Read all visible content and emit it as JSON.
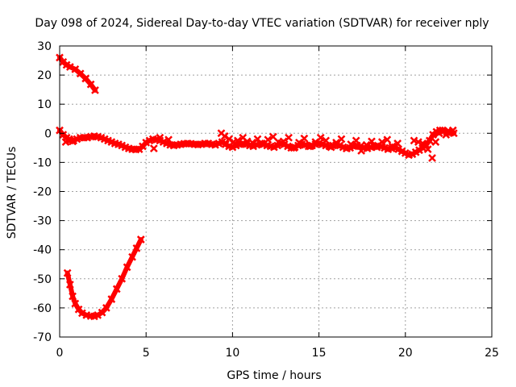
{
  "chart_data": {
    "type": "scatter",
    "title": "Day 098 of 2024, Sidereal Day-to-day VTEC variation (SDTVAR) for receiver nply",
    "xlabel": "GPS time / hours",
    "ylabel": "SDTVAR / TECUs",
    "xlim": [
      0,
      25
    ],
    "ylim": [
      -70,
      30
    ],
    "xticks": [
      0,
      5,
      10,
      15,
      20,
      25
    ],
    "yticks": [
      -70,
      -60,
      -50,
      -40,
      -30,
      -20,
      -10,
      0,
      10,
      20,
      30
    ],
    "grid": true,
    "marker_color": "#ff0000",
    "series": [
      {
        "name": "upper-arc",
        "x": [
          0.0,
          0.2,
          0.4,
          0.6,
          0.9,
          1.2,
          1.5,
          1.8,
          2.05
        ],
        "y": [
          26,
          24.5,
          23.5,
          22.8,
          22,
          20.5,
          18.8,
          16.8,
          14.8
        ]
      },
      {
        "name": "lower-arc",
        "x": [
          0.45,
          0.6,
          0.75,
          0.9,
          1.1,
          1.3,
          1.55,
          1.8,
          2.0,
          2.2,
          2.45,
          2.7,
          3.0,
          3.3,
          3.6,
          3.9,
          4.2,
          4.45,
          4.7
        ],
        "y": [
          -48,
          -52,
          -56,
          -58.5,
          -60.5,
          -61.8,
          -62.5,
          -62.8,
          -62.9,
          -62.5,
          -61.6,
          -60,
          -57,
          -53.5,
          -50,
          -46,
          -42.5,
          -39.5,
          -36.5
        ]
      },
      {
        "name": "main-track",
        "x": [
          0.0,
          0.2,
          0.4,
          0.6,
          0.8,
          1.0,
          1.2,
          1.4,
          1.6,
          1.8,
          2.0,
          2.2,
          2.4,
          2.6,
          2.8,
          3.0,
          3.2,
          3.4,
          3.6,
          3.8,
          4.0,
          4.2,
          4.4,
          4.6,
          4.8,
          5.0,
          5.2,
          5.4,
          5.6,
          5.8,
          6.0,
          6.2,
          6.4,
          6.6,
          6.8,
          7.0,
          7.2,
          7.4,
          7.6,
          7.8,
          8.0,
          8.2,
          8.4,
          8.6,
          8.8,
          9.0,
          9.2,
          9.4,
          9.6,
          9.8,
          10.0,
          10.2,
          10.4,
          10.6,
          10.8,
          11.0,
          11.2,
          11.4,
          11.6,
          11.8,
          12.0,
          12.2,
          12.4,
          12.6,
          12.8,
          13.0,
          13.2,
          13.4,
          13.6,
          13.8,
          14.0,
          14.2,
          14.4,
          14.6,
          14.8,
          15.0,
          15.2,
          15.4,
          15.6,
          15.8,
          16.0,
          16.2,
          16.4,
          16.6,
          16.8,
          17.0,
          17.2,
          17.4,
          17.6,
          17.8,
          18.0,
          18.2,
          18.4,
          18.6,
          18.8,
          19.0,
          19.2,
          19.4,
          19.6,
          19.8,
          20.0,
          20.2,
          20.4,
          20.6,
          20.8,
          21.0,
          21.2,
          21.4,
          21.6,
          21.8,
          22.0,
          22.2,
          22.4,
          22.6,
          22.8
        ],
        "y": [
          1,
          -0.5,
          -1.5,
          -2.5,
          -2.5,
          -2,
          -1.5,
          -1.5,
          -1.5,
          -1.2,
          -1,
          -1.2,
          -1.5,
          -2,
          -2.5,
          -3,
          -3.5,
          -3.8,
          -4.2,
          -4.8,
          -5.2,
          -5.5,
          -5.6,
          -5.5,
          -4.5,
          -3.2,
          -2.5,
          -2,
          -2.2,
          -2.5,
          -3,
          -3.5,
          -4,
          -4.2,
          -4,
          -3.8,
          -3.6,
          -3.5,
          -3.6,
          -3.8,
          -3.9,
          -3.8,
          -3.5,
          -3.5,
          -3.8,
          -4,
          -3.5,
          -3,
          -3.8,
          -4.5,
          -4.8,
          -4.2,
          -3.8,
          -3.6,
          -3.8,
          -4.2,
          -4.5,
          -4,
          -3.5,
          -3.8,
          -4.2,
          -4.5,
          -4.8,
          -4.2,
          -3.5,
          -3.8,
          -4.5,
          -5,
          -4.8,
          -4.2,
          -3.8,
          -4,
          -4.5,
          -4.2,
          -3.8,
          -3.5,
          -3.8,
          -4.2,
          -4.5,
          -4.2,
          -4,
          -4.2,
          -4.8,
          -5.2,
          -5,
          -4.5,
          -4.2,
          -4.5,
          -5,
          -5.2,
          -4.8,
          -4.5,
          -4.2,
          -4.5,
          -5,
          -5.5,
          -5.2,
          -4.8,
          -5.5,
          -6.2,
          -6.8,
          -7.5,
          -7.2,
          -6.5,
          -5.8,
          -5,
          -4,
          -2.5,
          -0.5,
          0.5,
          1,
          0.8,
          0.4,
          0.2,
          0
        ]
      },
      {
        "name": "scatter-band",
        "x": [
          0.35,
          0.55,
          0.75,
          5.45,
          5.8,
          6.3,
          9.35,
          9.55,
          9.8,
          10.05,
          10.3,
          10.6,
          10.85,
          11.15,
          11.45,
          11.7,
          12.05,
          12.35,
          12.65,
          12.95,
          13.25,
          13.55,
          13.85,
          14.15,
          14.5,
          14.8,
          15.1,
          15.4,
          15.7,
          16.0,
          16.3,
          16.6,
          16.85,
          17.15,
          17.45,
          17.75,
          18.05,
          18.35,
          18.65,
          18.95,
          19.25,
          19.55,
          20.5,
          20.75,
          21.0,
          21.3,
          21.55,
          21.75,
          21.95,
          22.15,
          22.35,
          22.55,
          22.75
        ],
        "y": [
          -3,
          -2,
          -2.8,
          -5.2,
          -1.5,
          -2.2,
          0,
          -1,
          -2,
          -3,
          -2.5,
          -1.5,
          -2.8,
          -3.2,
          -2,
          -3.5,
          -2.2,
          -1.2,
          -3,
          -2.8,
          -1.5,
          -5,
          -3.2,
          -1.8,
          -4.5,
          -3,
          -1.5,
          -2.5,
          -4.8,
          -3.2,
          -2,
          -5.2,
          -3.8,
          -2.5,
          -6,
          -4,
          -2.8,
          -4.8,
          -3,
          -2.2,
          -4.5,
          -3.5,
          -2.5,
          -3,
          -3.5,
          -5.5,
          -8.5,
          -3,
          0,
          1,
          -0.5,
          0.5,
          1
        ]
      }
    ]
  }
}
